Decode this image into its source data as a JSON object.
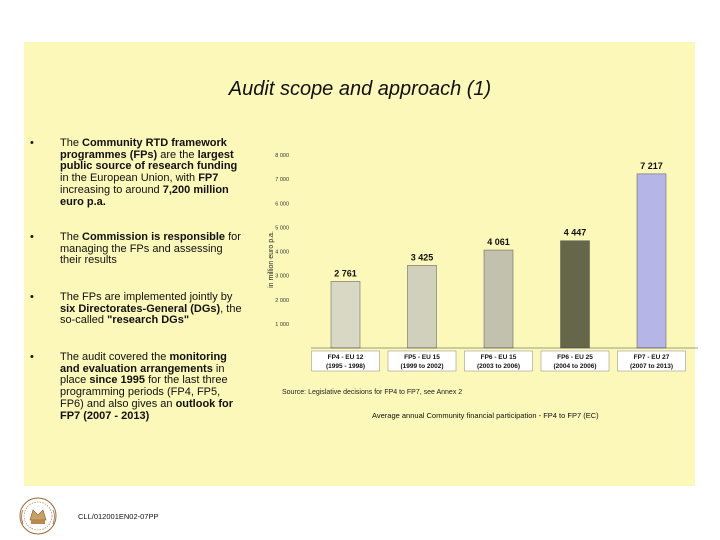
{
  "title": "Audit scope and approach (1)",
  "bullets": [
    {
      "marker": "•",
      "segments": [
        {
          "text": "The ",
          "bold": false
        },
        {
          "text": "Community RTD framework programmes (FPs)",
          "bold": true
        },
        {
          "text": " are the ",
          "bold": false
        },
        {
          "text": "largest public source of research funding",
          "bold": true
        },
        {
          "text": " in the European Union, with ",
          "bold": false
        },
        {
          "text": "FP7",
          "bold": true
        },
        {
          "text": " increasing to around ",
          "bold": false
        },
        {
          "text": "7,200 million euro p.a.",
          "bold": true
        }
      ]
    },
    {
      "marker": "•",
      "segments": [
        {
          "text": "The ",
          "bold": false
        },
        {
          "text": "Commission is responsible",
          "bold": true
        },
        {
          "text": " for managing the FPs and assessing their results",
          "bold": false
        }
      ]
    },
    {
      "marker": "•",
      "segments": [
        {
          "text": "The FPs are implemented jointly by ",
          "bold": false
        },
        {
          "text": "six Directorates-General (DGs)",
          "bold": true
        },
        {
          "text": ", the so-called ",
          "bold": false
        },
        {
          "text": "\"research DGs\"",
          "bold": true
        }
      ]
    },
    {
      "marker": "•",
      "segments": [
        {
          "text": "The audit covered the ",
          "bold": false
        },
        {
          "text": "monitoring and evaluation arrangements",
          "bold": true
        },
        {
          "text": " in place ",
          "bold": false
        },
        {
          "text": "since 1995",
          "bold": true
        },
        {
          "text": " for the last three programming periods (FP4, FP5, FP6) and also gives an ",
          "bold": false
        },
        {
          "text": "outlook for FP7 (2007 - 2013)",
          "bold": true
        }
      ]
    }
  ],
  "chart_data": {
    "type": "bar",
    "categories": [
      {
        "line1": "FP4 - EU 12",
        "line2": "(1995 - 1998)"
      },
      {
        "line1": "FP5 - EU 15",
        "line2": "(1999 to 2002)"
      },
      {
        "line1": "FP6 - EU 15",
        "line2": "(2003 to 2006)"
      },
      {
        "line1": "FP6 - EU 25",
        "line2": "(2004 to 2006)"
      },
      {
        "line1": "FP7 - EU 27",
        "line2": "(2007 to 2013)"
      }
    ],
    "values": [
      2761,
      3425,
      4061,
      4447,
      7217
    ],
    "value_labels": [
      "2 761",
      "3 425",
      "4 061",
      "4 447",
      "7 217"
    ],
    "ylabel": "in million euro p.a.",
    "ylim": [
      0,
      8000
    ],
    "yticks": [
      1000,
      2000,
      3000,
      4000,
      5000,
      6000,
      7000,
      8000
    ],
    "ytick_labels": [
      "1 000",
      "2 000",
      "3 000",
      "4 000",
      "5 000",
      "6 000",
      "7 000",
      "8 000"
    ],
    "bar_colors": [
      "#d9d8c4",
      "#d0d0bc",
      "#c1c1ad",
      "#66664a",
      "#b6b5e8"
    ],
    "grid": false
  },
  "source": "Source: Legislative decisions for FP4 to FP7, see Annex 2",
  "caption": "Average annual Community financial participation - FP4 to FP7 (EC)",
  "reference": "CLL/012001EN02-07PP",
  "logo_icon": "eca-seal-icon"
}
